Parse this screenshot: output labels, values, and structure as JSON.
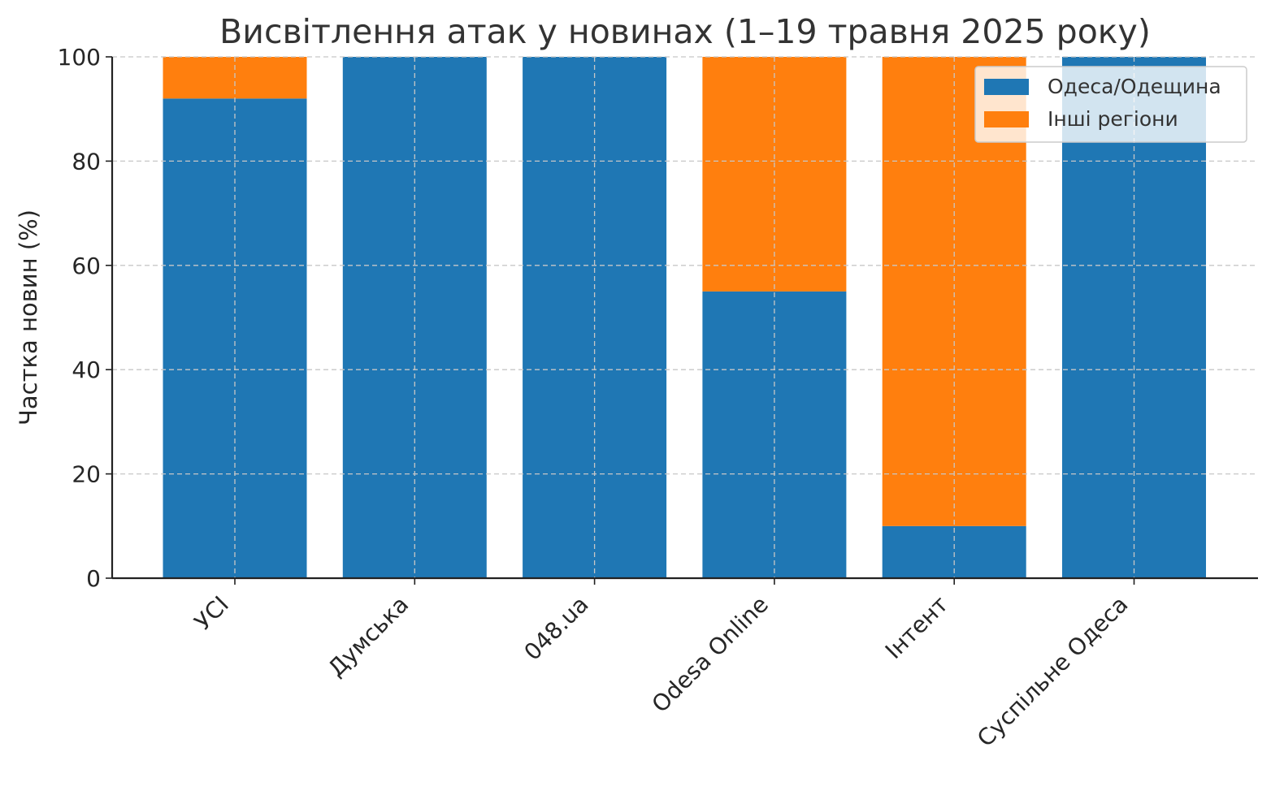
{
  "chart_data": {
    "type": "bar",
    "stacked": true,
    "title": "Висвітлення атак у новинах (1–19 травня 2025 року)",
    "xlabel": "",
    "ylabel": "Частка новин (%)",
    "ylim": [
      0,
      100
    ],
    "yticks": [
      "0",
      "20",
      "40",
      "60",
      "80",
      "100"
    ],
    "grid": true,
    "legend_position": "top-right",
    "categories": [
      "УСІ",
      "Думська",
      "048.ua",
      "Odesa Online",
      "Інтент",
      "Суспільне Одеса"
    ],
    "series": [
      {
        "name": "Одеса/Одещина",
        "color": "#1f77b4",
        "values": [
          92,
          100,
          100,
          55,
          10,
          100
        ]
      },
      {
        "name": "Інші регіони",
        "color": "#ff7f0e",
        "values": [
          8,
          0,
          0,
          45,
          90,
          0
        ]
      }
    ]
  }
}
